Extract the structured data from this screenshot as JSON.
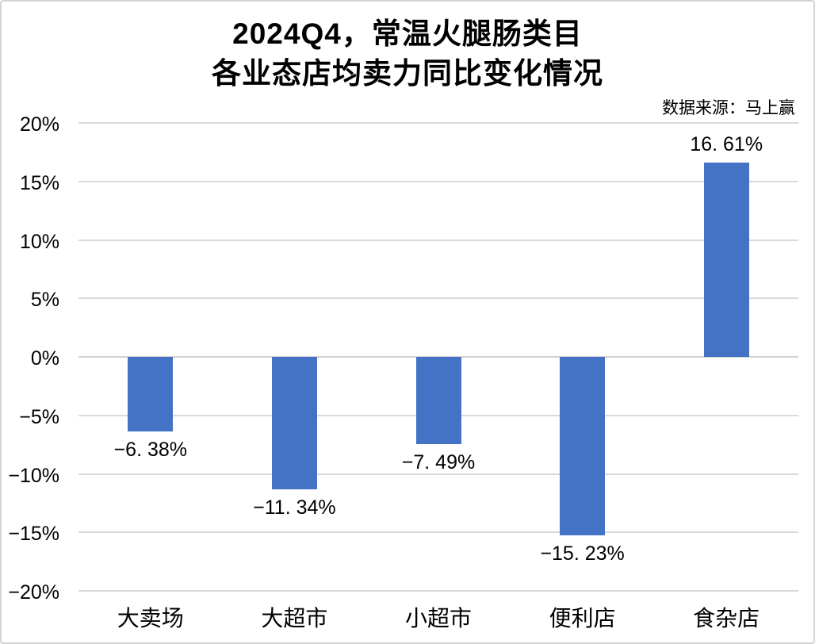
{
  "chart": {
    "title_line1": "2024Q4，常温火腿肠类目",
    "title_line2": "各业态店均卖力同比变化情况",
    "source": "数据来源：马上赢"
  },
  "chart_data": {
    "type": "bar",
    "title": "2024Q4，常温火腿肠类目 各业态店均卖力同比变化情况",
    "source": "数据来源：马上赢",
    "categories": [
      "大卖场",
      "大超市",
      "小超市",
      "便利店",
      "食杂店"
    ],
    "values": [
      -6.38,
      -11.34,
      -7.49,
      -15.23,
      16.61
    ],
    "value_labels": [
      "−6. 38%",
      "−11. 34%",
      "−7. 49%",
      "−15. 23%",
      "16. 61%"
    ],
    "xlabel": "",
    "ylabel": "",
    "ylim": [
      -20,
      20
    ],
    "y_tick_values": [
      20,
      15,
      10,
      5,
      0,
      -5,
      -10,
      -15,
      -20
    ],
    "y_ticks": [
      "20%",
      "15%",
      "10%",
      "5%",
      "0%",
      "−5%",
      "−10%",
      "−15%",
      "−20%"
    ],
    "grid": true,
    "legend": false,
    "bar_color": "#4472C4",
    "gridline_color": "#D9D9D9",
    "zero_line_color": "#D2D2D2",
    "text_color": "#000000"
  }
}
